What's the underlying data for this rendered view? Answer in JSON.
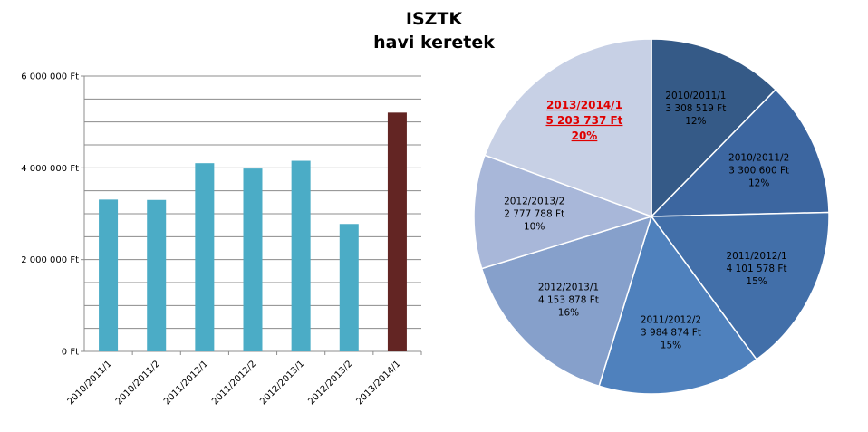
{
  "title": {
    "line1": "ISZTK",
    "line2": "havi keretek"
  },
  "chart_data": [
    {
      "type": "bar",
      "categories": [
        "2010/2011/1",
        "2010/2011/2",
        "2011/2012/1",
        "2011/2012/2",
        "2012/2013/1",
        "2012/2013/2",
        "2013/2014/1"
      ],
      "values": [
        3308519,
        3300600,
        4101578,
        3984874,
        4153878,
        2777788,
        5203737
      ],
      "ylim": [
        0,
        6000000
      ],
      "yticks": [
        {
          "value": 0,
          "label": "0 Ft"
        },
        {
          "value": 2000000,
          "label": "2 000 000 Ft"
        },
        {
          "value": 4000000,
          "label": "4 000 000 Ft"
        },
        {
          "value": 6000000,
          "label": "6 000 000 Ft"
        }
      ],
      "grid": true,
      "colors": {
        "default": "#4bacc6",
        "highlight": "#632523"
      },
      "highlight_index": 6
    },
    {
      "type": "pie",
      "slices": [
        {
          "category": "2010/2011/1",
          "value": 3308519,
          "value_label": "3 308 519 Ft",
          "percent_label": "12%",
          "color": "#355a87"
        },
        {
          "category": "2010/2011/2",
          "value": 3300600,
          "value_label": "3 300 600 Ft",
          "percent_label": "12%",
          "color": "#3c66a0"
        },
        {
          "category": "2011/2012/1",
          "value": 4101578,
          "value_label": "4 101 578 Ft",
          "percent_label": "15%",
          "color": "#426fa9"
        },
        {
          "category": "2011/2012/2",
          "value": 3984874,
          "value_label": "3 984 874 Ft",
          "percent_label": "15%",
          "color": "#4f81bd"
        },
        {
          "category": "2012/2013/1",
          "value": 4153878,
          "value_label": "4 153 878 Ft",
          "percent_label": "16%",
          "color": "#86a0cb"
        },
        {
          "category": "2012/2013/2",
          "value": 2777788,
          "value_label": "2 777 788 Ft",
          "percent_label": "10%",
          "color": "#a8b7d9"
        },
        {
          "category": "2013/2014/1",
          "value": 5203737,
          "value_label": "5 203 737 Ft",
          "percent_label": "20%",
          "color": "#c7d0e5",
          "highlight": true
        }
      ]
    }
  ]
}
